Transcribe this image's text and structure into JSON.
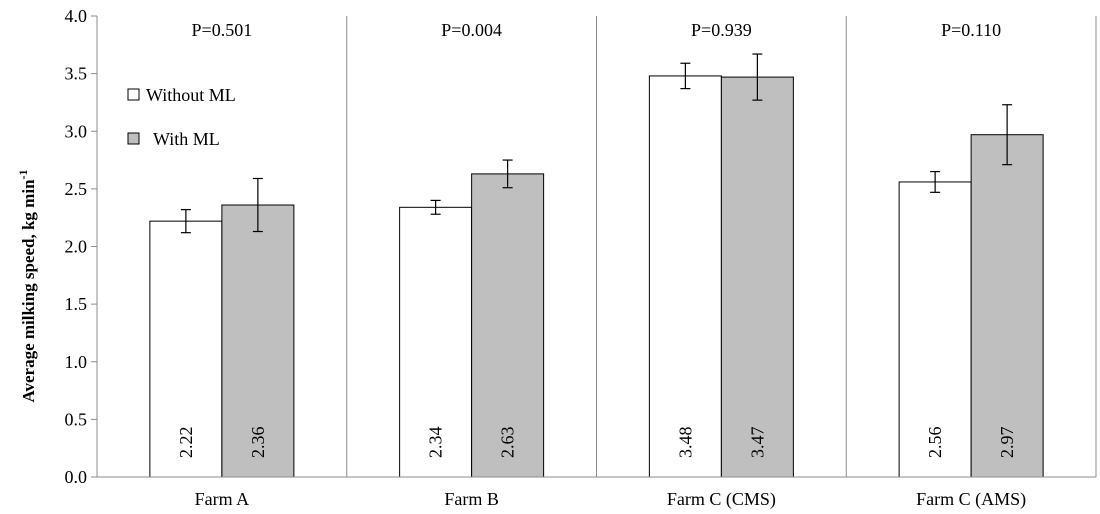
{
  "chart_data": {
    "type": "bar",
    "ylabel": "Average milking  speed, kg min",
    "ylabel_sup": "-1",
    "ylim": [
      0,
      4.0
    ],
    "yticks": [
      "0.0",
      "0.5",
      "1.0",
      "1.5",
      "2.0",
      "2.5",
      "3.0",
      "3.5",
      "4.0"
    ],
    "categories": [
      "Farm A",
      "Farm B",
      "Farm C (CMS)",
      "Farm C (AMS)"
    ],
    "p_values": [
      "P=0.501",
      "P=0.004",
      "P=0.939",
      "P=0.110"
    ],
    "series": [
      {
        "name": "Without ML",
        "color": "#ffffff",
        "values": [
          2.22,
          2.34,
          3.48,
          2.56
        ],
        "labels": [
          "2.22",
          "2.34",
          "3.48",
          "2.56"
        ],
        "error": [
          0.1,
          0.06,
          0.11,
          0.09
        ]
      },
      {
        "name": "With ML",
        "color": "#bfbfbf",
        "values": [
          2.36,
          2.63,
          3.47,
          2.97
        ],
        "labels": [
          "2.36",
          "2.63",
          "3.47",
          "2.97"
        ],
        "error": [
          0.23,
          0.12,
          0.2,
          0.26
        ]
      }
    ],
    "legend_position": "top-left",
    "grid": false,
    "panel_dividers": true
  }
}
